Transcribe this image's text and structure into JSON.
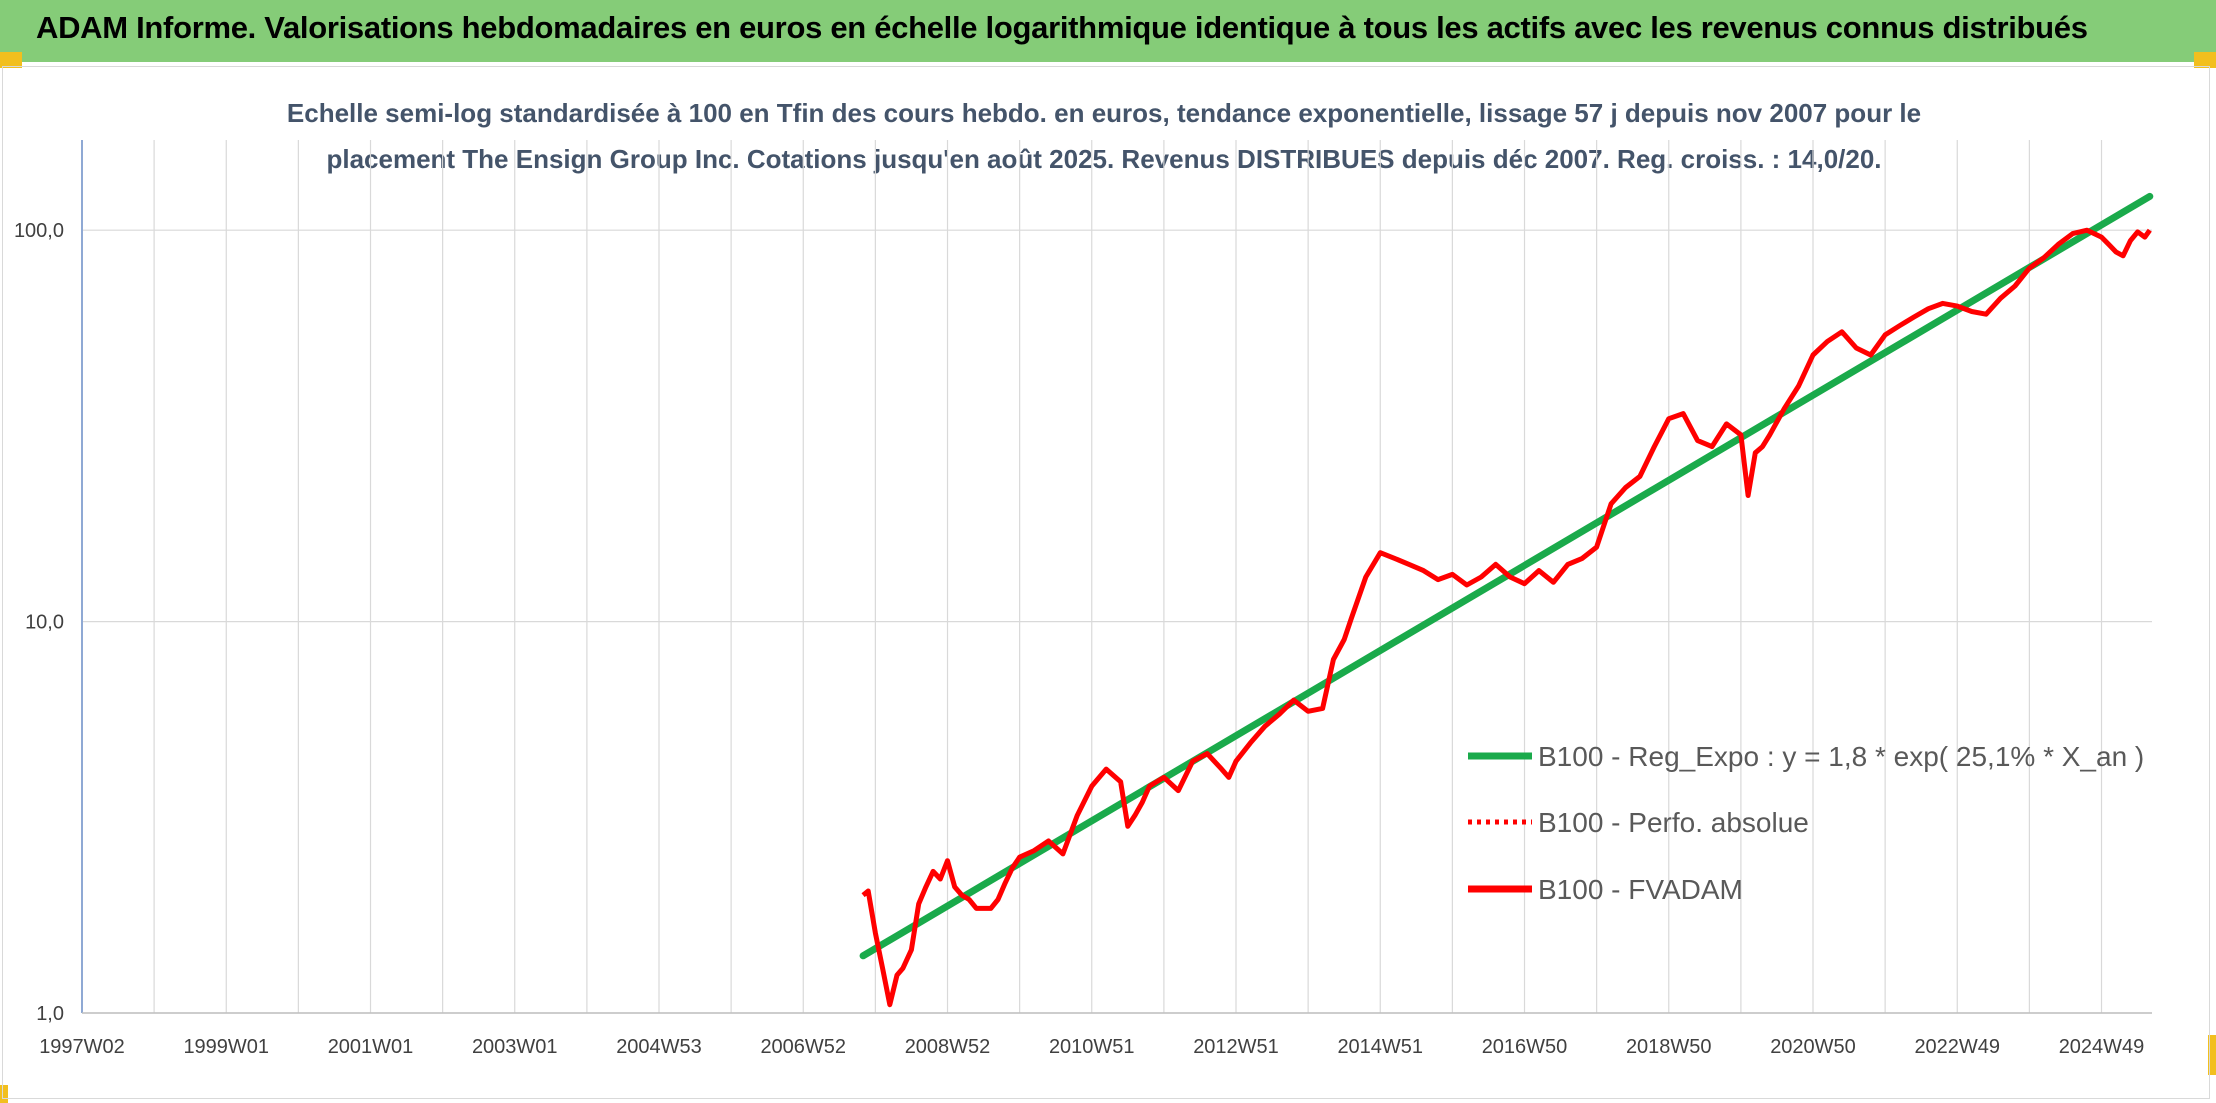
{
  "header": {
    "title": "ADAM Informe. Valorisations hebdomadaires en euros en échelle logarithmique identique à tous les actifs avec les revenus connus distribués"
  },
  "colors": {
    "header_bg": "#85cc78",
    "trend": "#1aaa4b",
    "fvadam": "#ff0000",
    "perf_absolue": "#ff0000",
    "grid": "#d9d9d9",
    "subtitle": "#44546a"
  },
  "chart_data": {
    "type": "line",
    "title_lines": [
      "Echelle semi-log standardisée à 100 en Tfin des cours hebdo. en euros, tendance exponentielle, lissage 57 j depuis nov 2007 pour le",
      "placement The Ensign Group Inc. Cotations jusqu'en août 2025. Revenus DISTRIBUES depuis déc 2007. Reg. croiss. : 14,0/20."
    ],
    "y_scale": "log",
    "ylim": [
      1,
      170
    ],
    "y_ticks": [
      {
        "value": 1,
        "label": "1,0"
      },
      {
        "value": 10,
        "label": "10,0"
      },
      {
        "value": 100,
        "label": "100,0"
      }
    ],
    "xlim": [
      1997.0,
      2025.7
    ],
    "x_ticks": [
      {
        "x": 1997.0,
        "label": "1997W02"
      },
      {
        "x": 1999.0,
        "label": "1999W01"
      },
      {
        "x": 2001.0,
        "label": "2001W01"
      },
      {
        "x": 2003.0,
        "label": "2003W01"
      },
      {
        "x": 2005.0,
        "label": "2004W53"
      },
      {
        "x": 2007.0,
        "label": "2006W52"
      },
      {
        "x": 2009.0,
        "label": "2008W52"
      },
      {
        "x": 2011.0,
        "label": "2010W51"
      },
      {
        "x": 2013.0,
        "label": "2012W51"
      },
      {
        "x": 2015.0,
        "label": "2014W51"
      },
      {
        "x": 2017.0,
        "label": "2016W50"
      },
      {
        "x": 2019.0,
        "label": "2018W50"
      },
      {
        "x": 2021.0,
        "label": "2020W50"
      },
      {
        "x": 2023.0,
        "label": "2022W49"
      },
      {
        "x": 2025.0,
        "label": "2024W49"
      }
    ],
    "x_gridlines": [
      1997.0,
      1998.0,
      1999.0,
      2000.0,
      2001.0,
      2002.0,
      2003.0,
      2004.0,
      2005.0,
      2006.0,
      2007.0,
      2008.0,
      2009.0,
      2010.0,
      2011.0,
      2012.0,
      2013.0,
      2014.0,
      2015.0,
      2016.0,
      2017.0,
      2018.0,
      2019.0,
      2020.0,
      2021.0,
      2022.0,
      2023.0,
      2024.0,
      2025.0
    ],
    "legend": [
      {
        "label": "B100 - Reg_Expo : y = 1,8 * exp( 25,1% *  X_an )",
        "color": "#1aaa4b",
        "style": "solid"
      },
      {
        "label": "B100 - Perfo. absolue",
        "color": "#ff0000",
        "style": "dotted"
      },
      {
        "label": "B100 - FVADAM",
        "color": "#ff0000",
        "style": "solid"
      }
    ],
    "legend_position": "lower-right",
    "series": [
      {
        "name": "B100 - Reg_Expo : y = 1,8 * exp( 25,1% *  X_an )",
        "style": "trend",
        "x": [
          2007.83,
          2025.67
        ],
        "y": [
          1.4,
          122
        ]
      },
      {
        "name": "B100 - FVADAM",
        "style": "line",
        "x": [
          2007.83,
          2007.9,
          2008.0,
          2008.1,
          2008.2,
          2008.3,
          2008.38,
          2008.5,
          2008.6,
          2008.7,
          2008.8,
          2008.9,
          2009.0,
          2009.1,
          2009.2,
          2009.3,
          2009.4,
          2009.5,
          2009.6,
          2009.7,
          2009.8,
          2009.9,
          2010.0,
          2010.2,
          2010.4,
          2010.6,
          2010.8,
          2011.0,
          2011.2,
          2011.4,
          2011.5,
          2011.6,
          2011.7,
          2011.8,
          2012.0,
          2012.2,
          2012.4,
          2012.6,
          2012.8,
          2012.9,
          2013.0,
          2013.2,
          2013.4,
          2013.6,
          2013.8,
          2014.0,
          2014.2,
          2014.35,
          2014.5,
          2014.6,
          2014.8,
          2015.0,
          2015.2,
          2015.4,
          2015.6,
          2015.8,
          2016.0,
          2016.2,
          2016.4,
          2016.6,
          2016.8,
          2017.0,
          2017.2,
          2017.4,
          2017.6,
          2017.8,
          2018.0,
          2018.2,
          2018.4,
          2018.6,
          2018.8,
          2019.0,
          2019.2,
          2019.4,
          2019.6,
          2019.8,
          2020.0,
          2020.1,
          2020.2,
          2020.3,
          2020.4,
          2020.6,
          2020.8,
          2021.0,
          2021.2,
          2021.4,
          2021.6,
          2021.8,
          2022.0,
          2022.2,
          2022.4,
          2022.6,
          2022.8,
          2023.0,
          2023.2,
          2023.4,
          2023.6,
          2023.8,
          2024.0,
          2024.2,
          2024.4,
          2024.6,
          2024.8,
          2025.0,
          2025.1,
          2025.2,
          2025.3,
          2025.4,
          2025.5,
          2025.6,
          2025.67
        ],
        "y": [
          2.0,
          2.05,
          1.6,
          1.3,
          1.05,
          1.25,
          1.3,
          1.45,
          1.9,
          2.1,
          2.3,
          2.2,
          2.45,
          2.1,
          2.0,
          1.95,
          1.85,
          1.85,
          1.85,
          1.95,
          2.15,
          2.35,
          2.5,
          2.6,
          2.75,
          2.55,
          3.2,
          3.8,
          4.2,
          3.9,
          3.0,
          3.2,
          3.45,
          3.8,
          4.0,
          3.7,
          4.4,
          4.6,
          4.2,
          4.0,
          4.4,
          4.9,
          5.4,
          5.8,
          6.3,
          5.9,
          6.0,
          8.0,
          9.0,
          10.2,
          13.0,
          15.0,
          14.5,
          14.0,
          13.5,
          12.8,
          13.2,
          12.4,
          13.0,
          14.0,
          13.0,
          12.5,
          13.5,
          12.6,
          14.0,
          14.5,
          15.5,
          20.0,
          22.0,
          23.5,
          28.0,
          33.0,
          34.0,
          29.0,
          28.0,
          32.0,
          30.0,
          21.0,
          27.0,
          28.0,
          30.0,
          35.0,
          40.0,
          48.0,
          52.0,
          55.0,
          50.0,
          48.0,
          54.0,
          57.0,
          60.0,
          63.0,
          65.0,
          64.0,
          62.0,
          61.0,
          67.0,
          72.0,
          80.0,
          85.0,
          92.0,
          98.0,
          100.0,
          96.0,
          92.0,
          88.0,
          86.0,
          94.0,
          99.0,
          96.0,
          100.0
        ]
      }
    ]
  }
}
